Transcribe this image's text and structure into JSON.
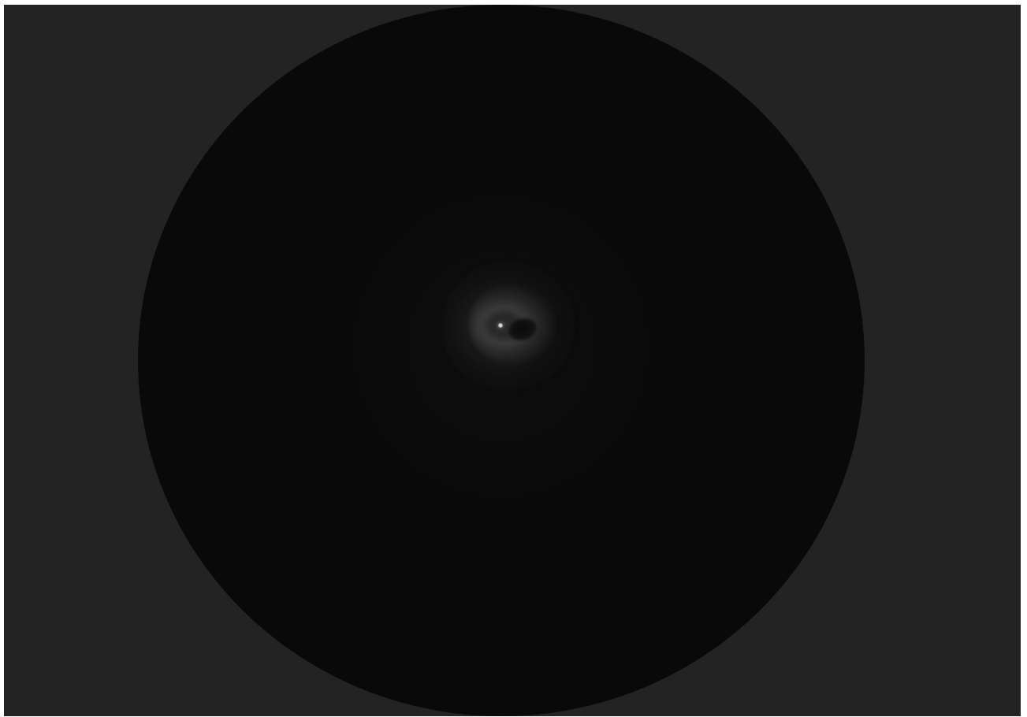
{
  "scene": {
    "subject": "eyepiece-view",
    "background_color": "#232323",
    "field_color": "#0a0a0a",
    "star_color": "#f0f0f0"
  }
}
